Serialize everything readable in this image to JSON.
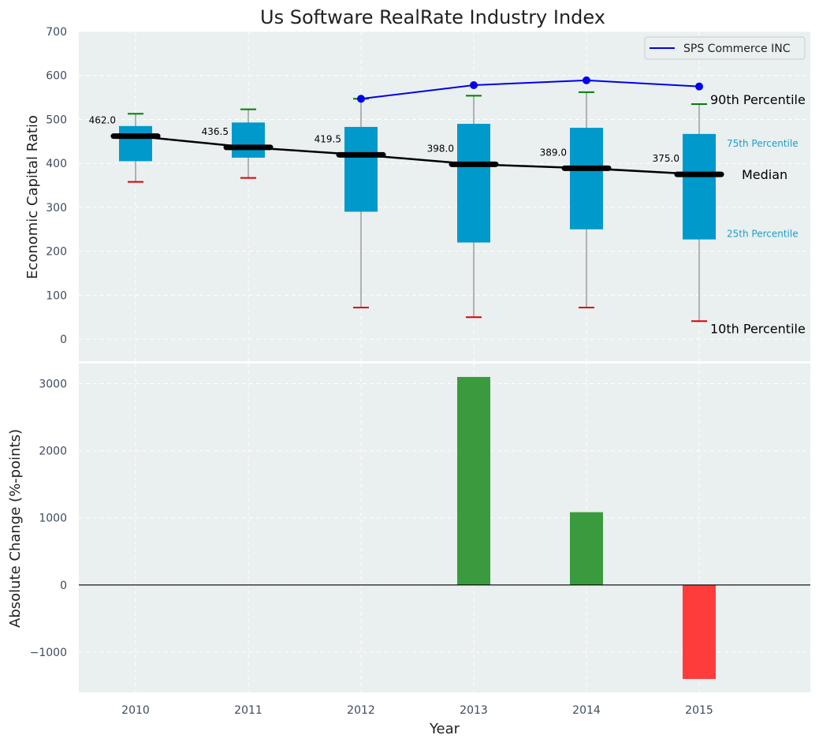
{
  "chart_data": [
    {
      "type": "box",
      "title": "Us Software RealRate Industry Index",
      "xlabel": "",
      "ylabel": "Economic Capital Ratio",
      "ylim": [
        -50,
        700
      ],
      "yticks": [
        0,
        100,
        200,
        300,
        400,
        500,
        600,
        700
      ],
      "categories": [
        "2010",
        "2011",
        "2012",
        "2013",
        "2014",
        "2015"
      ],
      "grid": true,
      "legend_position": "top-right",
      "percentiles": {
        "p10": [
          358,
          367,
          72,
          50,
          72,
          41
        ],
        "p25": [
          405,
          413,
          290,
          220,
          250,
          227
        ],
        "median": [
          462.0,
          436.5,
          419.5,
          398.0,
          389.0,
          375.0
        ],
        "p75": [
          485,
          493,
          483,
          490,
          481,
          467
        ],
        "p90": [
          513,
          523,
          547,
          554,
          562,
          535
        ]
      },
      "median_labels": [
        "462.0",
        "436.5",
        "419.5",
        "398.0",
        "389.0",
        "375.0"
      ],
      "series": [
        {
          "name": "SPS Commerce INC",
          "x": [
            "2012",
            "2013",
            "2014",
            "2015"
          ],
          "values": [
            547,
            578,
            589,
            575
          ],
          "color": "#0000ee"
        }
      ],
      "annotations": {
        "p90": "90th Percentile",
        "p75": "75th Percentile",
        "median": "Median",
        "p25": "25th Percentile",
        "p10": "10th Percentile"
      },
      "colors": {
        "box": "#0099cc",
        "median": "#000000",
        "p90_cap": "#008000",
        "p10_cap": "#dd0000",
        "background": "#eaeff0"
      }
    },
    {
      "type": "bar",
      "xlabel": "Year",
      "ylabel": "Absolute Change (%-points)",
      "ylim": [
        -1600,
        3300
      ],
      "yticks": [
        -1000,
        0,
        1000,
        2000,
        3000
      ],
      "ytick_labels": [
        "−1000",
        "0",
        "1000",
        "2000",
        "3000"
      ],
      "categories": [
        "2010",
        "2011",
        "2012",
        "2013",
        "2014",
        "2015"
      ],
      "values": [
        null,
        null,
        null,
        3100,
        1085,
        -1400
      ],
      "grid": true,
      "colors": {
        "positive": "#3a9b3e",
        "negative": "#ff3c3c",
        "background": "#eaeff0"
      }
    }
  ]
}
